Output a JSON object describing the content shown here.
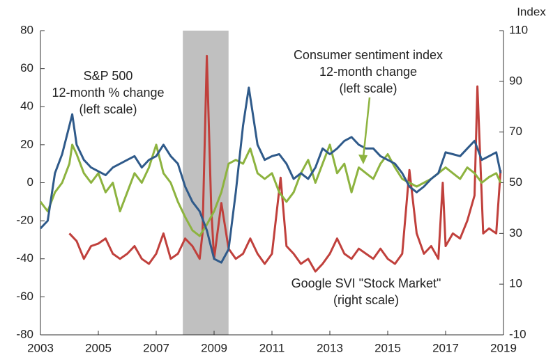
{
  "chart_data": {
    "type": "line",
    "right_axis_label": "Index",
    "xlim": [
      2003,
      2019
    ],
    "xticks": [
      2003,
      2005,
      2007,
      2009,
      2011,
      2013,
      2015,
      2017,
      2019
    ],
    "ylim": [
      -80,
      80
    ],
    "yticks": [
      -80,
      -60,
      -40,
      -20,
      0,
      20,
      40,
      60,
      80
    ],
    "y2lim": [
      -10,
      110
    ],
    "y2ticks": [
      -10,
      10,
      30,
      50,
      70,
      90,
      110
    ],
    "shaded_range": [
      2007.92,
      2009.5
    ],
    "shade_color": "#c0c0c0",
    "series": [
      {
        "name": "S&P 500",
        "color": "#2f5a8a",
        "axis": "y",
        "x": [
          2003.0,
          2003.25,
          2003.5,
          2003.75,
          2004.0,
          2004.1,
          2004.25,
          2004.5,
          2004.75,
          2005.0,
          2005.25,
          2005.5,
          2005.75,
          2006.0,
          2006.25,
          2006.5,
          2006.75,
          2007.0,
          2007.25,
          2007.5,
          2007.75,
          2008.0,
          2008.25,
          2008.5,
          2008.75,
          2009.0,
          2009.25,
          2009.5,
          2009.75,
          2010.0,
          2010.2,
          2010.5,
          2010.75,
          2011.0,
          2011.25,
          2011.5,
          2011.75,
          2012.0,
          2012.25,
          2012.5,
          2012.75,
          2013.0,
          2013.25,
          2013.5,
          2013.75,
          2014.0,
          2014.25,
          2014.5,
          2014.75,
          2015.0,
          2015.25,
          2015.5,
          2015.75,
          2016.0,
          2016.25,
          2016.5,
          2016.75,
          2017.0,
          2017.25,
          2017.5,
          2017.75,
          2018.0,
          2018.25,
          2018.5,
          2018.75,
          2018.9
        ],
        "values": [
          -24,
          -20,
          5,
          15,
          30,
          36,
          20,
          12,
          8,
          6,
          4,
          8,
          10,
          12,
          14,
          8,
          12,
          14,
          20,
          14,
          10,
          -2,
          -10,
          -15,
          -25,
          -40,
          -42,
          -35,
          -5,
          30,
          50,
          20,
          12,
          14,
          15,
          10,
          2,
          5,
          2,
          8,
          18,
          15,
          18,
          22,
          24,
          20,
          18,
          18,
          14,
          12,
          10,
          5,
          -2,
          -5,
          -2,
          2,
          5,
          16,
          15,
          14,
          18,
          22,
          12,
          14,
          16,
          5
        ]
      },
      {
        "name": "Consumer sentiment index",
        "color": "#8db33f",
        "axis": "y",
        "x": [
          2003.0,
          2003.25,
          2003.5,
          2003.75,
          2004.0,
          2004.1,
          2004.25,
          2004.5,
          2004.75,
          2005.0,
          2005.25,
          2005.5,
          2005.75,
          2006.0,
          2006.25,
          2006.5,
          2006.75,
          2007.0,
          2007.25,
          2007.5,
          2007.75,
          2008.0,
          2008.25,
          2008.5,
          2008.75,
          2009.0,
          2009.25,
          2009.5,
          2009.75,
          2010.0,
          2010.25,
          2010.5,
          2010.75,
          2011.0,
          2011.25,
          2011.5,
          2011.75,
          2012.0,
          2012.25,
          2012.5,
          2012.75,
          2013.0,
          2013.25,
          2013.5,
          2013.75,
          2014.0,
          2014.25,
          2014.5,
          2014.75,
          2015.0,
          2015.25,
          2015.5,
          2015.75,
          2016.0,
          2016.25,
          2016.5,
          2016.75,
          2017.0,
          2017.25,
          2017.5,
          2017.75,
          2018.0,
          2018.25,
          2018.5,
          2018.75,
          2018.9
        ],
        "values": [
          -10,
          -15,
          -5,
          0,
          10,
          20,
          15,
          5,
          0,
          5,
          -5,
          0,
          -15,
          -5,
          5,
          0,
          8,
          20,
          5,
          0,
          -10,
          -18,
          -25,
          -28,
          -22,
          -15,
          -5,
          10,
          12,
          10,
          18,
          5,
          2,
          5,
          -5,
          -10,
          -5,
          5,
          12,
          0,
          10,
          20,
          5,
          10,
          -5,
          8,
          5,
          2,
          10,
          15,
          8,
          2,
          0,
          -2,
          0,
          2,
          5,
          8,
          5,
          2,
          8,
          5,
          0,
          3,
          5,
          0
        ]
      },
      {
        "name": "Google SVI \"Stock Market\"",
        "color": "#c0403c",
        "axis": "y2",
        "x": [
          2004.0,
          2004.25,
          2004.5,
          2004.75,
          2005.0,
          2005.25,
          2005.5,
          2005.75,
          2006.0,
          2006.25,
          2006.5,
          2006.75,
          2007.0,
          2007.25,
          2007.5,
          2007.75,
          2008.0,
          2008.25,
          2008.5,
          2008.6,
          2008.75,
          2008.9,
          2009.0,
          2009.25,
          2009.5,
          2009.75,
          2010.0,
          2010.25,
          2010.5,
          2010.75,
          2011.0,
          2011.3,
          2011.5,
          2011.75,
          2012.0,
          2012.25,
          2012.5,
          2012.75,
          2013.0,
          2013.25,
          2013.5,
          2013.75,
          2014.0,
          2014.25,
          2014.5,
          2014.75,
          2015.0,
          2015.25,
          2015.5,
          2015.75,
          2016.0,
          2016.25,
          2016.5,
          2016.75,
          2016.9,
          2017.0,
          2017.25,
          2017.5,
          2017.75,
          2018.0,
          2018.1,
          2018.3,
          2018.5,
          2018.75,
          2018.9
        ],
        "values": [
          30,
          27,
          20,
          25,
          26,
          28,
          22,
          20,
          22,
          25,
          20,
          18,
          22,
          30,
          20,
          22,
          28,
          25,
          20,
          30,
          100,
          40,
          20,
          42,
          24,
          20,
          22,
          28,
          22,
          18,
          22,
          52,
          25,
          22,
          18,
          20,
          15,
          18,
          22,
          28,
          22,
          20,
          24,
          22,
          20,
          24,
          20,
          18,
          22,
          55,
          30,
          22,
          25,
          20,
          50,
          25,
          30,
          28,
          35,
          45,
          88,
          30,
          32,
          30,
          55
        ]
      }
    ],
    "annotations": [
      {
        "lines": [
          "S&P 500",
          "12-month % change",
          "(left scale)"
        ]
      },
      {
        "lines": [
          "Consumer sentiment index",
          "12-month change",
          "(left scale)"
        ]
      },
      {
        "lines": [
          "Google SVI \"Stock Market\"",
          "(right scale)"
        ]
      }
    ]
  }
}
